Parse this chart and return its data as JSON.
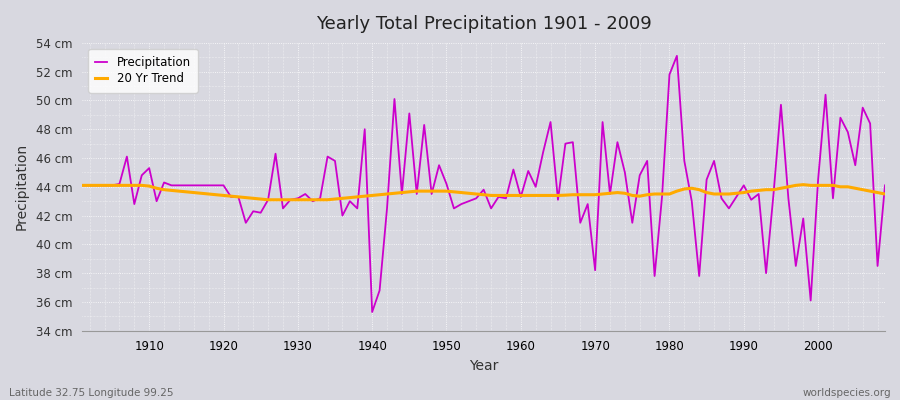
{
  "title": "Yearly Total Precipitation 1901 - 2009",
  "xlabel": "Year",
  "ylabel": "Precipitation",
  "lat_lon_label": "Latitude 32.75 Longitude 99.25",
  "credit": "worldspecies.org",
  "line_color": "#cc00cc",
  "trend_color": "#ffaa00",
  "bg_color": "#d8d8e0",
  "plot_bg_color": "#d8d8e0",
  "ylim": [
    34,
    54
  ],
  "yticks": [
    34,
    36,
    38,
    40,
    42,
    44,
    46,
    48,
    50,
    52,
    54
  ],
  "ytick_labels": [
    "34 cm",
    "36 cm",
    "38 cm",
    "40 cm",
    "42 cm",
    "44 cm",
    "46 cm",
    "48 cm",
    "50 cm",
    "52 cm",
    "54 cm"
  ],
  "years": [
    1901,
    1902,
    1903,
    1904,
    1905,
    1906,
    1907,
    1908,
    1909,
    1910,
    1911,
    1912,
    1913,
    1914,
    1915,
    1916,
    1917,
    1918,
    1919,
    1920,
    1921,
    1922,
    1923,
    1924,
    1925,
    1926,
    1927,
    1928,
    1929,
    1930,
    1931,
    1932,
    1933,
    1934,
    1935,
    1936,
    1937,
    1938,
    1939,
    1940,
    1941,
    1942,
    1943,
    1944,
    1945,
    1946,
    1947,
    1948,
    1949,
    1950,
    1951,
    1952,
    1953,
    1954,
    1955,
    1956,
    1957,
    1958,
    1959,
    1960,
    1961,
    1962,
    1963,
    1964,
    1965,
    1966,
    1967,
    1968,
    1969,
    1970,
    1971,
    1972,
    1973,
    1974,
    1975,
    1976,
    1977,
    1978,
    1979,
    1980,
    1981,
    1982,
    1983,
    1984,
    1985,
    1986,
    1987,
    1988,
    1989,
    1990,
    1991,
    1992,
    1993,
    1994,
    1995,
    1996,
    1997,
    1998,
    1999,
    2000,
    2001,
    2002,
    2003,
    2004,
    2005,
    2006,
    2007,
    2008,
    2009
  ],
  "precip": [
    44.1,
    44.1,
    44.1,
    44.1,
    44.1,
    44.2,
    46.1,
    42.8,
    44.8,
    45.3,
    43.0,
    44.3,
    44.1,
    44.1,
    44.1,
    44.1,
    44.1,
    44.1,
    44.1,
    44.1,
    43.3,
    43.3,
    41.5,
    42.3,
    42.2,
    43.1,
    46.3,
    42.5,
    43.1,
    43.2,
    43.5,
    43.0,
    43.2,
    46.1,
    45.8,
    42.0,
    43.0,
    42.5,
    48.0,
    35.3,
    36.8,
    42.5,
    50.1,
    43.5,
    49.1,
    43.5,
    48.3,
    43.5,
    45.5,
    44.2,
    42.5,
    42.8,
    43.0,
    43.2,
    43.8,
    42.5,
    43.3,
    43.2,
    45.2,
    43.3,
    45.1,
    44.0,
    46.4,
    48.5,
    43.1,
    47.0,
    47.1,
    41.5,
    42.8,
    38.2,
    48.5,
    43.5,
    47.1,
    45.0,
    41.5,
    44.8,
    45.8,
    37.8,
    43.3,
    51.8,
    53.1,
    45.8,
    43.0,
    37.8,
    44.5,
    45.8,
    43.2,
    42.5,
    43.3,
    44.1,
    43.1,
    43.5,
    38.0,
    43.5,
    49.7,
    43.2,
    38.5,
    41.8,
    36.1,
    44.5,
    50.4,
    43.2,
    48.8,
    47.8,
    45.5,
    49.5,
    48.4,
    38.5,
    44.1
  ],
  "trend": [
    44.1,
    44.1,
    44.1,
    44.1,
    44.1,
    44.1,
    44.1,
    44.1,
    44.1,
    44.05,
    43.9,
    43.8,
    43.75,
    43.7,
    43.65,
    43.6,
    43.55,
    43.5,
    43.45,
    43.4,
    43.35,
    43.3,
    43.25,
    43.2,
    43.15,
    43.1,
    43.1,
    43.1,
    43.1,
    43.1,
    43.1,
    43.1,
    43.1,
    43.1,
    43.15,
    43.2,
    43.25,
    43.3,
    43.35,
    43.4,
    43.45,
    43.5,
    43.55,
    43.6,
    43.65,
    43.7,
    43.7,
    43.7,
    43.7,
    43.7,
    43.65,
    43.6,
    43.55,
    43.5,
    43.45,
    43.4,
    43.4,
    43.4,
    43.4,
    43.4,
    43.4,
    43.4,
    43.4,
    43.4,
    43.4,
    43.42,
    43.45,
    43.45,
    43.45,
    43.45,
    43.5,
    43.55,
    43.6,
    43.55,
    43.4,
    43.35,
    43.45,
    43.5,
    43.5,
    43.5,
    43.7,
    43.85,
    43.9,
    43.8,
    43.6,
    43.5,
    43.5,
    43.5,
    43.55,
    43.6,
    43.7,
    43.75,
    43.8,
    43.8,
    43.9,
    44.0,
    44.1,
    44.15,
    44.1,
    44.1,
    44.1,
    44.1,
    44.0,
    44.0,
    43.9,
    43.8,
    43.7,
    43.6,
    43.5
  ]
}
